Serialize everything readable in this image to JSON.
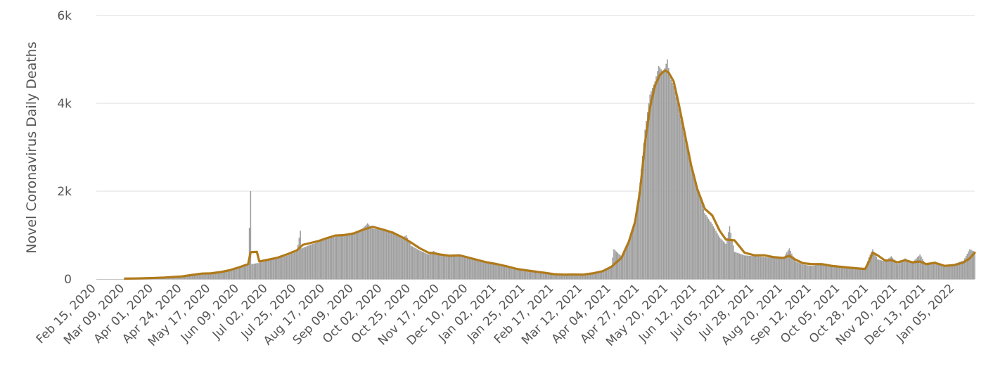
{
  "chart_data": {
    "type": "bar",
    "ylabel": "Novel Coronavirus Daily Deaths",
    "xlabel": "",
    "ylim": [
      0,
      6000
    ],
    "y_ticks": [
      {
        "value": 0,
        "label": "0"
      },
      {
        "value": 2000,
        "label": "2k"
      },
      {
        "value": 4000,
        "label": "4k"
      },
      {
        "value": 6000,
        "label": "6k"
      }
    ],
    "x_range": [
      "2020-02-15",
      "2022-01-21"
    ],
    "x_ticks": [
      "Feb 15, 2020",
      "Mar 09, 2020",
      "Apr 01, 2020",
      "Apr 24, 2020",
      "May 17, 2020",
      "Jun 09, 2020",
      "Jul 02, 2020",
      "Jul 25, 2020",
      "Aug 17, 2020",
      "Sep 09, 2020",
      "Oct 02, 2020",
      "Oct 25, 2020",
      "Nov 17, 2020",
      "Dec 10, 2020",
      "Jan 02, 2021",
      "Jan 25, 2021",
      "Feb 17, 2021",
      "Mar 12, 2021",
      "Apr 04, 2021",
      "Apr 27, 2021",
      "May 20, 2021",
      "Jun 12, 2021",
      "Jul 05, 2021",
      "Jul 28, 2021",
      "Aug 20, 2021",
      "Sep 12, 2021",
      "Oct 05, 2021",
      "Oct 28, 2021",
      "Nov 20, 2021",
      "Dec 13, 2021",
      "Jan 05, 2022"
    ],
    "grid": true,
    "legend": "none",
    "colors": {
      "bars": "#9e9e9e",
      "line": "#b07a1a",
      "grid": "#dcdcdc",
      "text": "#555555"
    },
    "series": [
      {
        "type": "bar",
        "points": [
          [
            "2020-03-10",
            0
          ],
          [
            "2020-03-20",
            5
          ],
          [
            "2020-04-01",
            25
          ],
          [
            "2020-04-10",
            45
          ],
          [
            "2020-04-24",
            70
          ],
          [
            "2020-05-01",
            100
          ],
          [
            "2020-05-10",
            120
          ],
          [
            "2020-05-17",
            130
          ],
          [
            "2020-05-25",
            160
          ],
          [
            "2020-06-01",
            200
          ],
          [
            "2020-06-09",
            260
          ],
          [
            "2020-06-16",
            330
          ],
          [
            "2020-06-18",
            2003
          ],
          [
            "2020-06-19",
            340
          ],
          [
            "2020-06-25",
            370
          ],
          [
            "2020-07-02",
            420
          ],
          [
            "2020-07-10",
            470
          ],
          [
            "2020-07-18",
            540
          ],
          [
            "2020-07-25",
            620
          ],
          [
            "2020-07-28",
            1100
          ],
          [
            "2020-07-29",
            700
          ],
          [
            "2020-08-05",
            780
          ],
          [
            "2020-08-12",
            850
          ],
          [
            "2020-08-17",
            920
          ],
          [
            "2020-08-25",
            960
          ],
          [
            "2020-09-01",
            990
          ],
          [
            "2020-09-09",
            1050
          ],
          [
            "2020-09-16",
            1150
          ],
          [
            "2020-09-20",
            1270
          ],
          [
            "2020-09-24",
            1150
          ],
          [
            "2020-10-02",
            1120
          ],
          [
            "2020-10-10",
            1050
          ],
          [
            "2020-10-18",
            920
          ],
          [
            "2020-10-21",
            1000
          ],
          [
            "2020-10-25",
            760
          ],
          [
            "2020-11-01",
            650
          ],
          [
            "2020-11-08",
            560
          ],
          [
            "2020-11-12",
            640
          ],
          [
            "2020-11-17",
            560
          ],
          [
            "2020-11-25",
            520
          ],
          [
            "2020-12-03",
            530
          ],
          [
            "2020-12-10",
            480
          ],
          [
            "2020-12-18",
            420
          ],
          [
            "2020-12-25",
            370
          ],
          [
            "2021-01-02",
            330
          ],
          [
            "2021-01-10",
            280
          ],
          [
            "2021-01-18",
            220
          ],
          [
            "2021-01-25",
            190
          ],
          [
            "2021-02-02",
            160
          ],
          [
            "2021-02-10",
            130
          ],
          [
            "2021-02-17",
            100
          ],
          [
            "2021-02-25",
            90
          ],
          [
            "2021-03-05",
            100
          ],
          [
            "2021-03-12",
            90
          ],
          [
            "2021-03-20",
            130
          ],
          [
            "2021-03-28",
            180
          ],
          [
            "2021-04-04",
            300
          ],
          [
            "2021-04-06",
            680
          ],
          [
            "2021-04-12",
            520
          ],
          [
            "2021-04-18",
            900
          ],
          [
            "2021-04-23",
            1300
          ],
          [
            "2021-04-27",
            2200
          ],
          [
            "2021-05-01",
            3400
          ],
          [
            "2021-05-05",
            4200
          ],
          [
            "2021-05-09",
            4500
          ],
          [
            "2021-05-12",
            4850
          ],
          [
            "2021-05-16",
            4700
          ],
          [
            "2021-05-19",
            5000
          ],
          [
            "2021-05-21",
            4600
          ],
          [
            "2021-05-24",
            4400
          ],
          [
            "2021-05-28",
            3900
          ],
          [
            "2021-06-02",
            3200
          ],
          [
            "2021-06-07",
            2600
          ],
          [
            "2021-06-12",
            2100
          ],
          [
            "2021-06-18",
            1500
          ],
          [
            "2021-06-24",
            1250
          ],
          [
            "2021-06-30",
            950
          ],
          [
            "2021-07-05",
            800
          ],
          [
            "2021-07-08",
            1200
          ],
          [
            "2021-07-12",
            620
          ],
          [
            "2021-07-20",
            540
          ],
          [
            "2021-07-28",
            520
          ],
          [
            "2021-08-05",
            500
          ],
          [
            "2021-08-12",
            480
          ],
          [
            "2021-08-20",
            470
          ],
          [
            "2021-08-25",
            700
          ],
          [
            "2021-08-30",
            400
          ],
          [
            "2021-09-05",
            330
          ],
          [
            "2021-09-12",
            300
          ],
          [
            "2021-09-20",
            330
          ],
          [
            "2021-09-28",
            290
          ],
          [
            "2021-10-05",
            260
          ],
          [
            "2021-10-12",
            250
          ],
          [
            "2021-10-20",
            230
          ],
          [
            "2021-10-25",
            210
          ],
          [
            "2021-10-28",
            500
          ],
          [
            "2021-10-31",
            680
          ],
          [
            "2021-11-04",
            450
          ],
          [
            "2021-11-10",
            400
          ],
          [
            "2021-11-15",
            520
          ],
          [
            "2021-11-20",
            340
          ],
          [
            "2021-11-26",
            470
          ],
          [
            "2021-12-02",
            380
          ],
          [
            "2021-12-08",
            560
          ],
          [
            "2021-12-13",
            320
          ],
          [
            "2021-12-20",
            400
          ],
          [
            "2021-12-28",
            300
          ],
          [
            "2022-01-05",
            350
          ],
          [
            "2022-01-12",
            420
          ],
          [
            "2022-01-17",
            680
          ],
          [
            "2022-01-21",
            620
          ]
        ]
      },
      {
        "type": "line",
        "points": [
          [
            "2020-03-09",
            10
          ],
          [
            "2020-03-20",
            15
          ],
          [
            "2020-04-01",
            25
          ],
          [
            "2020-04-10",
            35
          ],
          [
            "2020-04-24",
            60
          ],
          [
            "2020-05-01",
            90
          ],
          [
            "2020-05-10",
            125
          ],
          [
            "2020-05-17",
            130
          ],
          [
            "2020-05-25",
            160
          ],
          [
            "2020-06-01",
            200
          ],
          [
            "2020-06-09",
            270
          ],
          [
            "2020-06-16",
            340
          ],
          [
            "2020-06-18",
            610
          ],
          [
            "2020-06-23",
            620
          ],
          [
            "2020-06-25",
            400
          ],
          [
            "2020-07-02",
            440
          ],
          [
            "2020-07-10",
            490
          ],
          [
            "2020-07-18",
            570
          ],
          [
            "2020-07-25",
            650
          ],
          [
            "2020-07-30",
            780
          ],
          [
            "2020-08-05",
            820
          ],
          [
            "2020-08-12",
            870
          ],
          [
            "2020-08-17",
            920
          ],
          [
            "2020-08-25",
            990
          ],
          [
            "2020-09-01",
            1000
          ],
          [
            "2020-09-09",
            1040
          ],
          [
            "2020-09-16",
            1120
          ],
          [
            "2020-09-24",
            1190
          ],
          [
            "2020-10-02",
            1130
          ],
          [
            "2020-10-10",
            1060
          ],
          [
            "2020-10-18",
            950
          ],
          [
            "2020-10-25",
            830
          ],
          [
            "2020-11-01",
            700
          ],
          [
            "2020-11-08",
            600
          ],
          [
            "2020-11-12",
            590
          ],
          [
            "2020-11-17",
            560
          ],
          [
            "2020-11-25",
            530
          ],
          [
            "2020-12-03",
            540
          ],
          [
            "2020-12-10",
            490
          ],
          [
            "2020-12-18",
            430
          ],
          [
            "2020-12-25",
            380
          ],
          [
            "2021-01-02",
            340
          ],
          [
            "2021-01-10",
            290
          ],
          [
            "2021-01-18",
            230
          ],
          [
            "2021-01-25",
            200
          ],
          [
            "2021-02-02",
            170
          ],
          [
            "2021-02-10",
            140
          ],
          [
            "2021-02-17",
            110
          ],
          [
            "2021-02-25",
            100
          ],
          [
            "2021-03-05",
            105
          ],
          [
            "2021-03-12",
            100
          ],
          [
            "2021-03-20",
            130
          ],
          [
            "2021-03-28",
            180
          ],
          [
            "2021-04-04",
            280
          ],
          [
            "2021-04-12",
            480
          ],
          [
            "2021-04-18",
            850
          ],
          [
            "2021-04-23",
            1300
          ],
          [
            "2021-04-27",
            2000
          ],
          [
            "2021-05-01",
            3100
          ],
          [
            "2021-05-05",
            3900
          ],
          [
            "2021-05-09",
            4400
          ],
          [
            "2021-05-13",
            4650
          ],
          [
            "2021-05-17",
            4750
          ],
          [
            "2021-05-20",
            4700
          ],
          [
            "2021-05-24",
            4500
          ],
          [
            "2021-05-28",
            4000
          ],
          [
            "2021-06-02",
            3300
          ],
          [
            "2021-06-07",
            2600
          ],
          [
            "2021-06-12",
            2050
          ],
          [
            "2021-06-18",
            1600
          ],
          [
            "2021-06-24",
            1450
          ],
          [
            "2021-06-30",
            1100
          ],
          [
            "2021-07-05",
            900
          ],
          [
            "2021-07-12",
            880
          ],
          [
            "2021-07-20",
            600
          ],
          [
            "2021-07-28",
            540
          ],
          [
            "2021-08-05",
            540
          ],
          [
            "2021-08-12",
            500
          ],
          [
            "2021-08-20",
            480
          ],
          [
            "2021-08-25",
            530
          ],
          [
            "2021-08-30",
            440
          ],
          [
            "2021-09-05",
            360
          ],
          [
            "2021-09-12",
            340
          ],
          [
            "2021-09-20",
            340
          ],
          [
            "2021-09-28",
            300
          ],
          [
            "2021-10-05",
            280
          ],
          [
            "2021-10-12",
            260
          ],
          [
            "2021-10-20",
            240
          ],
          [
            "2021-10-25",
            230
          ],
          [
            "2021-10-28",
            400
          ],
          [
            "2021-10-31",
            600
          ],
          [
            "2021-11-04",
            540
          ],
          [
            "2021-11-10",
            420
          ],
          [
            "2021-11-15",
            430
          ],
          [
            "2021-11-20",
            380
          ],
          [
            "2021-11-26",
            430
          ],
          [
            "2021-12-02",
            380
          ],
          [
            "2021-12-08",
            400
          ],
          [
            "2021-12-13",
            340
          ],
          [
            "2021-12-20",
            370
          ],
          [
            "2021-12-28",
            300
          ],
          [
            "2022-01-05",
            320
          ],
          [
            "2022-01-12",
            380
          ],
          [
            "2022-01-17",
            470
          ],
          [
            "2022-01-21",
            600
          ]
        ]
      }
    ]
  }
}
